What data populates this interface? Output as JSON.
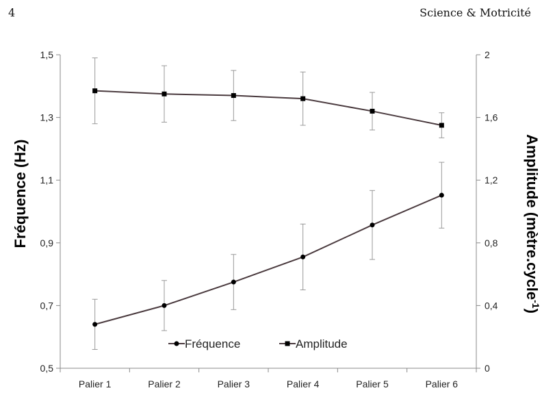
{
  "header": {
    "page_number": "4",
    "journal": "Science & Motricité"
  },
  "chart_data": {
    "type": "line",
    "categories": [
      "Palier 1",
      "Palier 2",
      "Palier 3",
      "Palier 4",
      "Palier 5",
      "Palier 6"
    ],
    "series": [
      {
        "name": "Fréquence",
        "axis": "left",
        "marker": "circle",
        "values": [
          0.64,
          0.7,
          0.775,
          0.855,
          0.957,
          1.052
        ],
        "error": [
          0.08,
          0.08,
          0.088,
          0.105,
          0.11,
          0.105
        ]
      },
      {
        "name": "Amplitude",
        "axis": "right",
        "marker": "square",
        "values": [
          1.77,
          1.75,
          1.74,
          1.72,
          1.64,
          1.55
        ],
        "error": [
          0.21,
          0.18,
          0.16,
          0.17,
          0.12,
          0.08
        ]
      }
    ],
    "ylabel_left": "Fréquence (Hz)",
    "ylabel_right_main": "Amplitude (mètre.cycle",
    "ylabel_right_sup": "-1",
    "ylabel_right_end": ")",
    "ylim_left": [
      0.5,
      1.5
    ],
    "yticks_left": [
      "0,5",
      "0,7",
      "0,9",
      "1,1",
      "1,3",
      "1,5"
    ],
    "ylim_right": [
      0,
      2
    ],
    "yticks_right": [
      "0",
      "0,4",
      "0,8",
      "1,2",
      "1,6",
      "2"
    ],
    "grid": false,
    "legend_position": "bottom-center",
    "line_color": "#4a3a3e"
  }
}
